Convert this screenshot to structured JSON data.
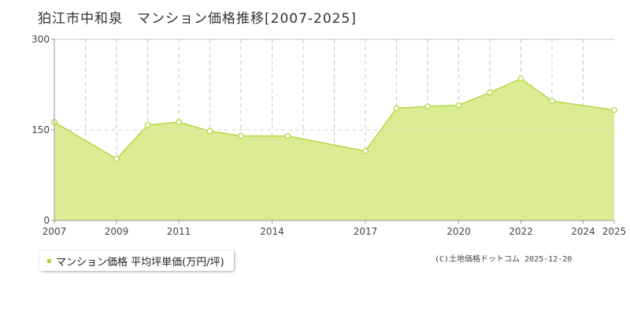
{
  "title": "狛江市中和泉　マンション価格推移[2007-2025]",
  "legend": {
    "label": "マンション価格 平均坪単価(万円/坪)"
  },
  "credit": "(C)土地価格ドットコム 2025-12-20",
  "colors": {
    "fill": "#dcec94",
    "line": "#b5d744",
    "grid": "#c8c8c8",
    "axis": "#999999",
    "dashed_ref": "#d0d0d0"
  },
  "chart_data": {
    "type": "area",
    "x": [
      2007,
      2008,
      2009,
      2010,
      2011,
      2012,
      2013,
      2014,
      2015,
      2016,
      2017,
      2018,
      2019,
      2020,
      2021,
      2022,
      2023,
      2024,
      2025
    ],
    "series": [
      {
        "values": [
          163,
          123,
          101,
          158,
          163,
          148,
          140,
          139,
          114,
          186,
          189,
          191,
          212,
          235,
          198,
          183,
          null,
          null,
          null
        ]
      }
    ],
    "points": [
      {
        "x": 2007,
        "y": 163
      },
      {
        "x": 2009,
        "y": 102
      },
      {
        "x": 2010,
        "y": 158
      },
      {
        "x": 2011,
        "y": 163
      },
      {
        "x": 2012,
        "y": 148
      },
      {
        "x": 2013,
        "y": 140
      },
      {
        "x": 2014.5,
        "y": 140
      },
      {
        "x": 2017,
        "y": 115
      },
      {
        "x": 2018,
        "y": 186
      },
      {
        "x": 2019,
        "y": 189
      },
      {
        "x": 2020,
        "y": 191
      },
      {
        "x": 2021,
        "y": 212
      },
      {
        "x": 2022,
        "y": 235
      },
      {
        "x": 2023,
        "y": 198
      },
      {
        "x": 2025,
        "y": 183
      }
    ],
    "xticks": [
      2007,
      2009,
      2011,
      2014,
      2017,
      2020,
      2022,
      2024,
      2025
    ],
    "yticks": [
      0,
      150,
      300
    ],
    "ylim": [
      0,
      300
    ],
    "xlim": [
      2007,
      2025
    ],
    "grid": true
  }
}
